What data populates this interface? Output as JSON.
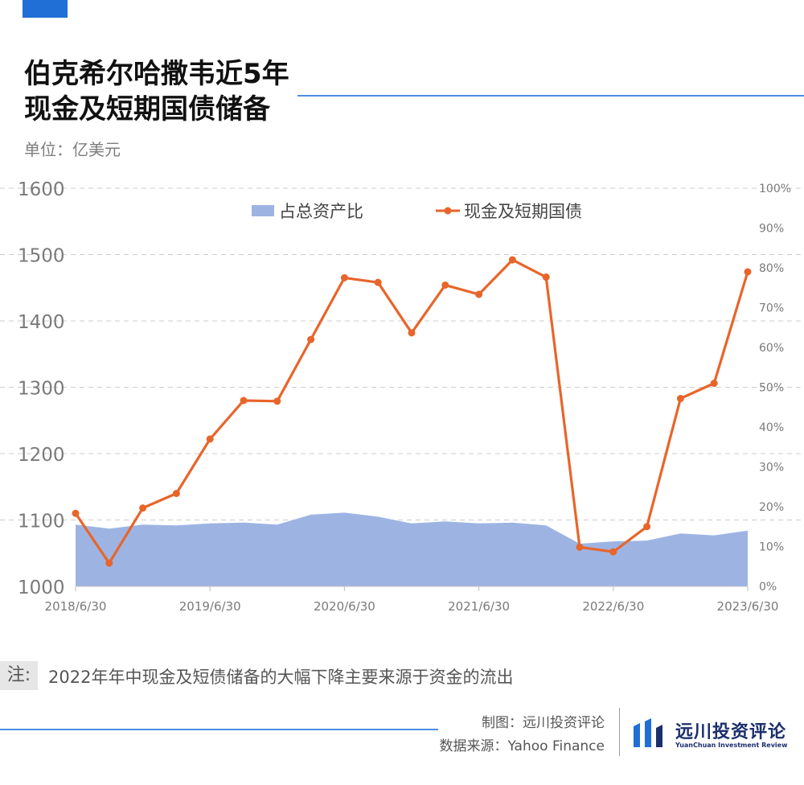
{
  "title_line1": "伯克希尔哈撒韦近5年",
  "title_line2": "现金及短期国债储备",
  "unit": "单位：亿美元",
  "note_label": "注:",
  "note_text": "2022年年中现金及短债储备的大幅下降主要来源于资金的流出",
  "credit_chart": "制图：远川投资评论",
  "credit_source": "数据来源：Yahoo Finance",
  "logo_name": "远川投资评论",
  "logo_sub": "YuanChuan Investment Review",
  "colors": {
    "line": "#e8652a",
    "area": "#9db4e3",
    "accent": "#1f6fd6"
  },
  "chart_data": {
    "type": "line",
    "x": [
      "2018/6/30",
      "2018/9/30",
      "2018/12/31",
      "2019/3/31",
      "2019/6/30",
      "2019/9/30",
      "2019/12/31",
      "2020/3/31",
      "2020/6/30",
      "2020/9/30",
      "2020/12/31",
      "2021/3/31",
      "2021/6/30",
      "2021/9/30",
      "2021/12/31",
      "2022/3/31",
      "2022/6/30",
      "2022/9/30",
      "2022/12/31",
      "2023/3/31",
      "2023/6/30"
    ],
    "x_tick_labels": [
      "2018/6/30",
      "2019/6/30",
      "2020/6/30",
      "2021/6/30",
      "2022/6/30",
      "2023/6/30"
    ],
    "series": [
      {
        "name": "现金及短期国债",
        "axis": "left",
        "values": [
          1110,
          1035,
          1118,
          1140,
          1222,
          1280,
          1279,
          1372,
          1465,
          1458,
          1382,
          1454,
          1440,
          1492,
          1466,
          1059,
          1052,
          1090,
          1283,
          1306,
          1474
        ]
      },
      {
        "name": "占总资产比",
        "axis": "right",
        "type": "area",
        "values": [
          15.5,
          14.5,
          15.5,
          15.3,
          15.8,
          16.0,
          15.5,
          18.0,
          18.5,
          17.5,
          15.8,
          16.3,
          15.8,
          16.0,
          15.3,
          10.7,
          11.3,
          11.5,
          13.3,
          12.8,
          14.0
        ]
      }
    ],
    "y_left": {
      "ylim": [
        1000,
        1600
      ],
      "ticks": [
        1000,
        1100,
        1200,
        1300,
        1400,
        1500,
        1600
      ]
    },
    "y_right": {
      "ylim": [
        0,
        100
      ],
      "ticks": [
        "0%",
        "10%",
        "20%",
        "30%",
        "40%",
        "50%",
        "60%",
        "70%",
        "80%",
        "90%",
        "100%"
      ]
    },
    "legend_placement": "top-center",
    "grid": true
  }
}
